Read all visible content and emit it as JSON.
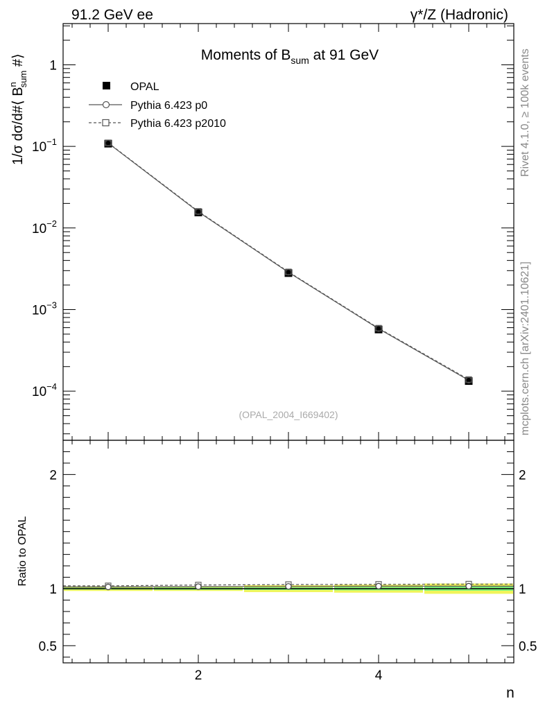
{
  "header": {
    "left": "91.2 GeV ee",
    "right": "γ*/Z (Hadronic)"
  },
  "side_labels": {
    "rivet": "Rivet 4.1.0, ≥ 100k events",
    "mcplots": "mcplots.cern.ch [arXiv:2401.10621]"
  },
  "chart_data": [
    {
      "type": "scatter",
      "title": "Moments of B_sum at 91 GeV",
      "title_parts": {
        "pre": "Moments of B",
        "sub": "sum",
        "post": " at 91 GeV"
      },
      "ylabel": "1/σ  dσ/d#⟨ B^n_sum #⟩",
      "ylabel_parts": {
        "a": "1/σ  dσ/d#⟨ B",
        "sup": "n",
        "sub": "sum",
        "b": " #⟩"
      },
      "xlabel": "n",
      "yscale": "log",
      "xlim": [
        0.5,
        5.5
      ],
      "ylim": [
        2.5e-05,
        3.2
      ],
      "y_ticks": [
        {
          "value": 1,
          "label": "1"
        },
        {
          "value": 0.1,
          "base": "10",
          "exp": "−1"
        },
        {
          "value": 0.01,
          "base": "10",
          "exp": "−2"
        },
        {
          "value": 0.001,
          "base": "10",
          "exp": "−3"
        },
        {
          "value": 0.0001,
          "base": "10",
          "exp": "−4"
        }
      ],
      "x": [
        1,
        2,
        3,
        4,
        5
      ],
      "series": [
        {
          "name": "OPAL",
          "marker": "filled-square",
          "values": [
            0.108,
            0.0155,
            0.0028,
            0.00057,
            0.000133
          ]
        },
        {
          "name": "Pythia 6.423 p0",
          "marker": "open-circle",
          "line": "solid",
          "values": [
            0.1096,
            0.01578,
            0.00286,
            0.000583,
            0.000136
          ]
        },
        {
          "name": "Pythia 6.423 p2010",
          "marker": "open-square",
          "line": "dashed",
          "values": [
            0.1107,
            0.016,
            0.0029,
            0.000592,
            0.000139
          ]
        }
      ],
      "legend_position": "top-left",
      "annotation": "(OPAL_2004_I669402)"
    },
    {
      "type": "line",
      "ylabel": "Ratio to OPAL",
      "xlabel": "n",
      "ylim": [
        0.35,
        2.3
      ],
      "xlim": [
        0.5,
        5.5
      ],
      "y_ticks": [
        {
          "value": 2,
          "label": "2"
        },
        {
          "value": 1,
          "label": "1"
        },
        {
          "value": 0.5,
          "label": "0.5"
        }
      ],
      "x_ticks": [
        {
          "value": 2,
          "label": "2"
        },
        {
          "value": 4,
          "label": "4"
        }
      ],
      "x": [
        1,
        2,
        3,
        4,
        5
      ],
      "series": [
        {
          "name": "Pythia 6.423 p0",
          "values": [
            1.015,
            1.018,
            1.02,
            1.022,
            1.022
          ]
        },
        {
          "name": "Pythia 6.423 p2010",
          "values": [
            1.025,
            1.032,
            1.036,
            1.038,
            1.04
          ]
        }
      ],
      "uncertainty_band": {
        "total": [
          0.02,
          0.02,
          0.03,
          0.035,
          0.045
        ],
        "stat": [
          0.008,
          0.01,
          0.012,
          0.015,
          0.018
        ]
      },
      "colors": {
        "band_total": "#f0f45a",
        "band_stat": "#7cf07c",
        "reference": "#000000",
        "mc": "#555555"
      }
    }
  ]
}
